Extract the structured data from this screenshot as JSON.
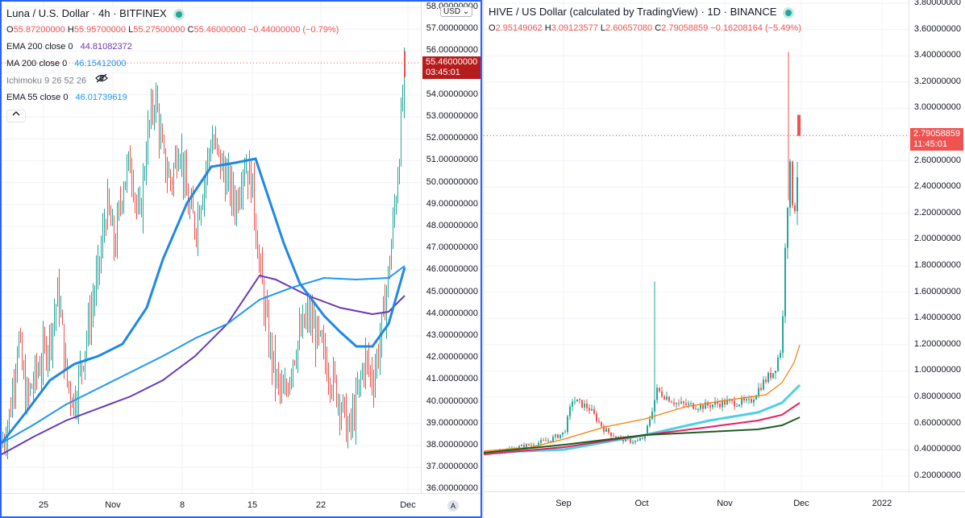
{
  "left": {
    "symbol": "Luna / U.S. Dollar · 4h · BITFINEX",
    "ohlc": {
      "o_label": "O",
      "o": "55.87200000",
      "h_label": "H",
      "h": "55.95700000",
      "l_label": "L",
      "l": "55.27500000",
      "c_label": "C",
      "c": "55.46000000",
      "change": "−0.44000000 (−0.79%)"
    },
    "indicators": [
      {
        "name": "EMA 200 close 0",
        "value": "44.81082372",
        "color": "#673ab7"
      },
      {
        "name": "MA 200 close 0",
        "value": "46.15412000",
        "color": "#2196f3"
      },
      {
        "name": "Ichimoku 9 26 52 26",
        "value": "",
        "color": "#787b86"
      },
      {
        "name": "EMA 55 close 0",
        "value": "46.01739619",
        "color": "#2196f3"
      }
    ],
    "currency": "USD",
    "price_ticks": [
      "58.00000000",
      "57.00000000",
      "56.00000000",
      "55.00000000",
      "54.00000000",
      "53.00000000",
      "52.00000000",
      "51.00000000",
      "50.00000000",
      "49.00000000",
      "48.00000000",
      "47.00000000",
      "46.00000000",
      "45.00000000",
      "44.00000000",
      "43.00000000",
      "42.00000000",
      "41.00000000",
      "40.00000000",
      "39.00000000",
      "38.00000000",
      "37.00000000",
      "36.00000000"
    ],
    "last_price": "55.46000000",
    "countdown": "03:45:01",
    "x_ticks": [
      "25",
      "Nov",
      "8",
      "15",
      "22",
      "Dec"
    ],
    "auto_label": "A"
  },
  "right": {
    "symbol": "HIVE / US Dollar (calculated by TradingView) · 1D · BINANCE",
    "ohlc": {
      "o_label": "O",
      "o": "2.95149062",
      "h_label": "H",
      "h": "3.09123577",
      "l_label": "L",
      "l": "2.60657080",
      "c_label": "C",
      "c": "2.79058859",
      "change": "−0.16208164 (−5.49%)"
    },
    "price_ticks": [
      "3.80000000",
      "3.60000000",
      "3.40000000",
      "3.20000000",
      "3.00000000",
      "2.60000000",
      "2.40000000",
      "2.20000000",
      "2.00000000",
      "1.80000000",
      "1.60000000",
      "1.40000000",
      "1.20000000",
      "1.00000000",
      "0.80000000",
      "0.60000000",
      "0.40000000",
      "0.20000000"
    ],
    "last_price": "2.79058859",
    "countdown": "11:45:01",
    "x_ticks": [
      "Sep",
      "Oct",
      "Nov",
      "Dec",
      "2022"
    ]
  },
  "colors": {
    "up": "#26a69a",
    "down": "#ef5350",
    "tag": "#b71c1c",
    "tag2": "#ef5350",
    "ema200": "#673ab7",
    "ma200": "#2196f3",
    "ema55": "#1e88e5",
    "orange": "#f57c00",
    "cyan": "#4dd0e1",
    "pink": "#e91e63",
    "dkgreen": "#1b5e20"
  }
}
